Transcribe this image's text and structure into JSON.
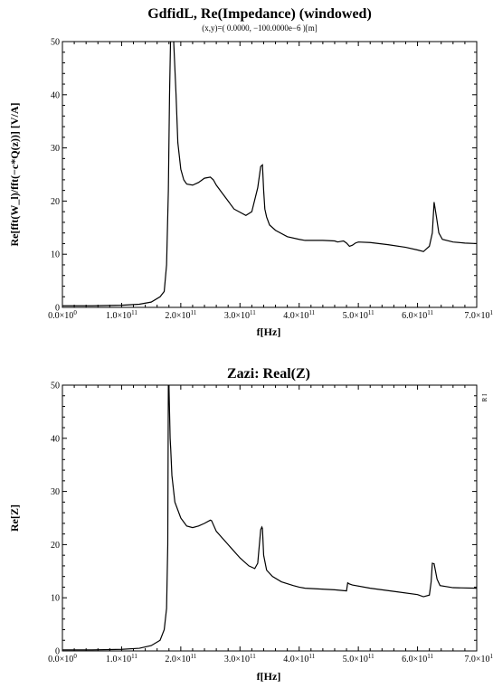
{
  "chart_data": [
    {
      "type": "line",
      "title": "GdfidL, Re(Impedance) (windowed)",
      "subtitle": "(x,y)=( 0.0000, −100.0000e−6 )[m]",
      "xlabel": "f[Hz]",
      "ylabel": "Re[fft(W_l)/fft(−c*Q(z))] [V/A]",
      "xlim": [
        0,
        700000000000.0
      ],
      "ylim": [
        0,
        50
      ],
      "x_ticks": [
        {
          "mant": "0.0×10",
          "exp": "0"
        },
        {
          "mant": "1.0×10",
          "exp": "11"
        },
        {
          "mant": "2.0×10",
          "exp": "11"
        },
        {
          "mant": "3.0×10",
          "exp": "11"
        },
        {
          "mant": "4.0×10",
          "exp": "11"
        },
        {
          "mant": "5.0×10",
          "exp": "11"
        },
        {
          "mant": "6.0×10",
          "exp": "11"
        },
        {
          "mant": "7.0×10",
          "exp": "1"
        }
      ],
      "y_ticks": [
        "0",
        "10",
        "20",
        "30",
        "40",
        "50"
      ],
      "grid": false,
      "series": [
        {
          "x": [
            0,
            50000000000.0,
            100000000000.0,
            130000000000.0,
            150000000000.0,
            165000000000.0,
            172000000000.0,
            176000000000.0,
            179000000000.0,
            181000000000.0,
            183000000000.0,
            188000000000.0,
            192000000000.0,
            195000000000.0,
            200000000000.0,
            205000000000.0,
            210000000000.0,
            220000000000.0,
            230000000000.0,
            240000000000.0,
            250000000000.0,
            255000000000.0,
            260000000000.0,
            270000000000.0,
            280000000000.0,
            290000000000.0,
            310000000000.0,
            320000000000.0,
            330000000000.0,
            335000000000.0,
            338000000000.0,
            340000000000.0,
            342000000000.0,
            345000000000.0,
            350000000000.0,
            360000000000.0,
            380000000000.0,
            400000000000.0,
            410000000000.0,
            440000000000.0,
            460000000000.0,
            465000000000.0,
            470000000000.0,
            475000000000.0,
            480000000000.0,
            485000000000.0,
            490000000000.0,
            495000000000.0,
            500000000000.0,
            520000000000.0,
            550000000000.0,
            580000000000.0,
            600000000000.0,
            610000000000.0,
            620000000000.0,
            625000000000.0,
            628000000000.0,
            632000000000.0,
            636000000000.0,
            642000000000.0,
            660000000000.0,
            680000000000.0,
            700000000000.0
          ],
          "y": [
            0.3,
            0.3,
            0.4,
            0.6,
            1.0,
            2.0,
            3.0,
            8.0,
            22.0,
            40.0,
            52.0,
            50.0,
            40.0,
            31.0,
            26.0,
            24.0,
            23.2,
            23.0,
            23.5,
            24.3,
            24.5,
            24.0,
            23.0,
            21.5,
            20.0,
            18.5,
            17.3,
            18.0,
            22.5,
            26.5,
            26.8,
            22.0,
            18.5,
            17.0,
            15.5,
            14.5,
            13.3,
            12.8,
            12.6,
            12.6,
            12.5,
            12.3,
            12.4,
            12.5,
            12.1,
            11.5,
            11.7,
            12.1,
            12.3,
            12.2,
            11.8,
            11.3,
            10.8,
            10.5,
            11.5,
            14.0,
            19.8,
            17.0,
            14.0,
            12.8,
            12.3,
            12.1,
            12.0
          ]
        }
      ]
    },
    {
      "type": "line",
      "title": "Zazi: Real(Z)",
      "xlabel": "f[Hz]",
      "ylabel": "Re[Z]",
      "xlim": [
        0,
        700000000000.0
      ],
      "ylim": [
        0,
        50
      ],
      "right_marker": "R I",
      "x_ticks": [
        {
          "mant": "0.0×10",
          "exp": "0"
        },
        {
          "mant": "1.0×10",
          "exp": "11"
        },
        {
          "mant": "2.0×10",
          "exp": "11"
        },
        {
          "mant": "3.0×10",
          "exp": "11"
        },
        {
          "mant": "4.0×10",
          "exp": "11"
        },
        {
          "mant": "5.0×10",
          "exp": "11"
        },
        {
          "mant": "6.0×10",
          "exp": "11"
        },
        {
          "mant": "7.0×10",
          "exp": "1"
        }
      ],
      "y_ticks": [
        "0",
        "10",
        "20",
        "30",
        "40",
        "50"
      ],
      "grid": false,
      "series": [
        {
          "x": [
            0,
            50000000000.0,
            100000000000.0,
            130000000000.0,
            150000000000.0,
            165000000000.0,
            172000000000.0,
            176000000000.0,
            178000000000.0,
            179000000000.0,
            180000000000.0,
            182000000000.0,
            183000000000.0,
            185000000000.0,
            190000000000.0,
            200000000000.0,
            210000000000.0,
            220000000000.0,
            230000000000.0,
            240000000000.0,
            250000000000.0,
            252000000000.0,
            260000000000.0,
            280000000000.0,
            300000000000.0,
            315000000000.0,
            325000000000.0,
            330000000000.0,
            335000000000.0,
            337000000000.0,
            338000000000.0,
            340000000000.0,
            345000000000.0,
            355000000000.0,
            370000000000.0,
            390000000000.0,
            400000000000.0,
            410000000000.0,
            460000000000.0,
            480000000000.0,
            482000000000.0,
            485000000000.0,
            490000000000.0,
            520000000000.0,
            560000000000.0,
            600000000000.0,
            610000000000.0,
            620000000000.0,
            623000000000.0,
            625000000000.0,
            628000000000.0,
            633000000000.0,
            638000000000.0,
            660000000000.0,
            700000000000.0
          ],
          "y": [
            0.2,
            0.2,
            0.3,
            0.5,
            1.0,
            2.0,
            4.0,
            8.0,
            20.0,
            50.0,
            50.0,
            40.0,
            38.0,
            33.0,
            28.0,
            25.0,
            23.5,
            23.2,
            23.5,
            24.0,
            24.6,
            24.5,
            22.5,
            20.0,
            17.5,
            16.0,
            15.5,
            16.5,
            22.8,
            23.3,
            23.0,
            18.0,
            15.2,
            14.0,
            13.0,
            12.3,
            12.0,
            11.8,
            11.5,
            11.3,
            12.8,
            12.6,
            12.4,
            11.8,
            11.2,
            10.6,
            10.2,
            10.5,
            13.0,
            16.5,
            16.4,
            13.5,
            12.3,
            11.9,
            11.8
          ]
        }
      ]
    }
  ]
}
